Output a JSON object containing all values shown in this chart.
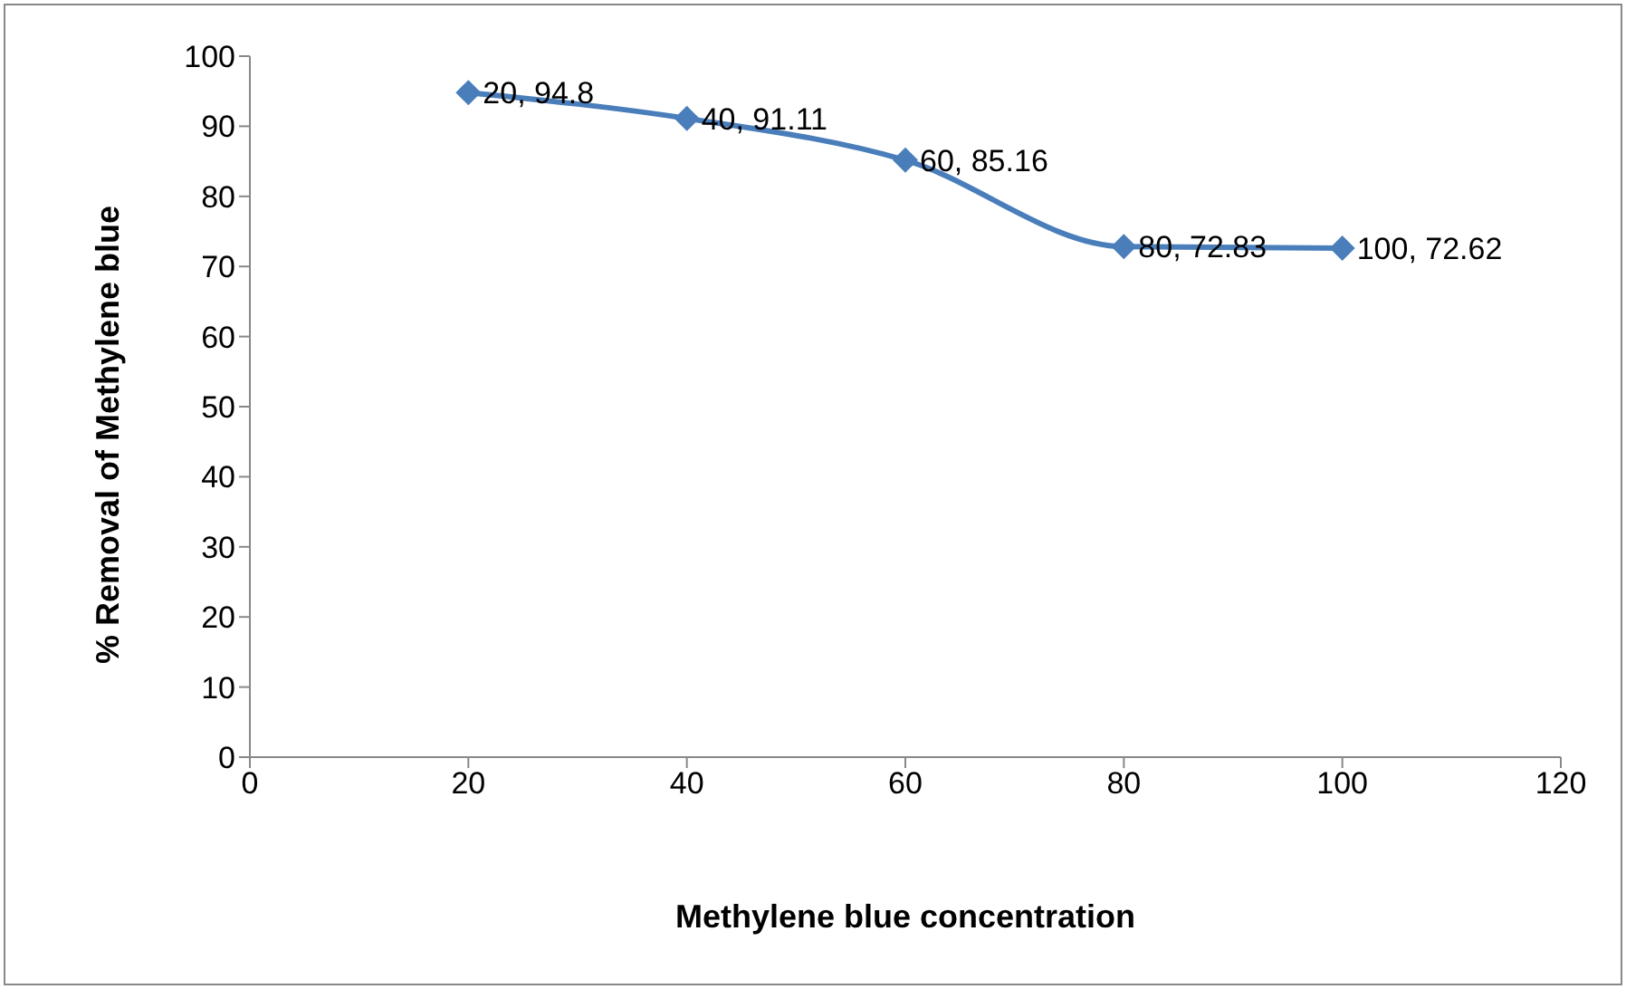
{
  "chart_data": {
    "type": "line",
    "xlabel": "Methylene blue concentration",
    "ylabel": "% Removal of Methylene blue",
    "x": [
      20,
      40,
      60,
      80,
      100
    ],
    "series": [
      {
        "color": "#4a7ebb",
        "values": [
          94.8,
          91.11,
          85.16,
          72.83,
          72.62
        ],
        "value_labels": [
          "20, 94.8",
          "40, 91.11",
          "60, 85.16",
          "80, 72.83",
          "100, 72.62"
        ]
      }
    ],
    "xlim": [
      0,
      120
    ],
    "xticks": [
      0,
      20,
      40,
      60,
      80,
      100,
      120
    ],
    "ylim": [
      0,
      100
    ],
    "yticks": [
      0,
      10,
      20,
      30,
      40,
      50,
      60,
      70,
      80,
      90,
      100
    ],
    "grid": false,
    "legend": false,
    "marker": "diamond",
    "line_style": "solid"
  }
}
